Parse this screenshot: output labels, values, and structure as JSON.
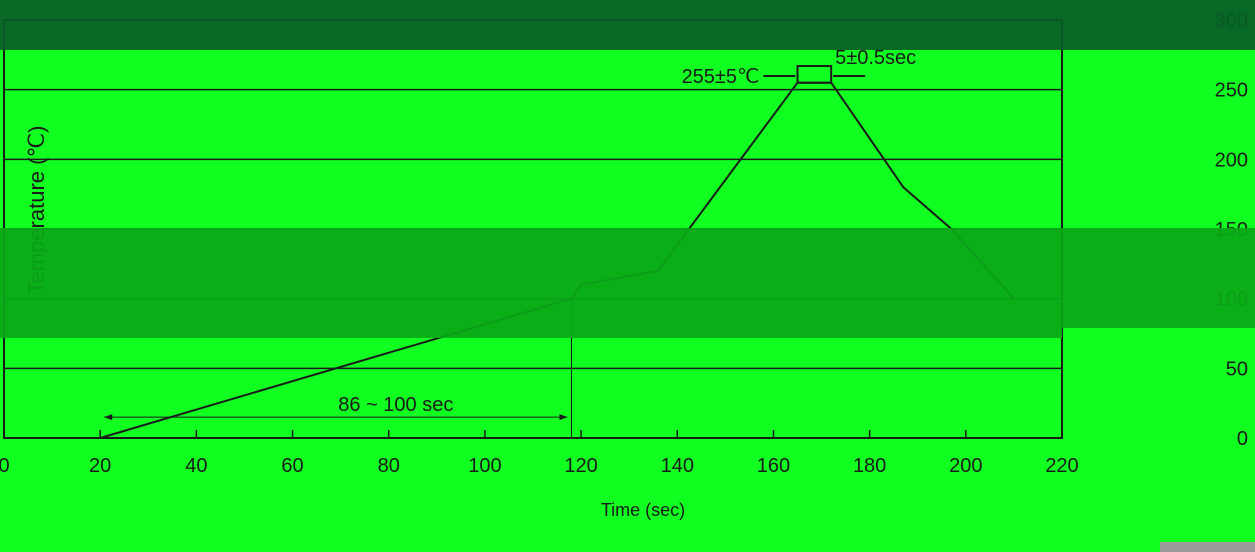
{
  "chart_data": {
    "type": "line",
    "xlabel": "Time (sec)",
    "ylabel": "Temperature (℃)",
    "xlim": [
      0,
      220
    ],
    "ylim": [
      0,
      300
    ],
    "x_ticks": [
      "0",
      "20",
      "40",
      "60",
      "80",
      "100",
      "120",
      "140",
      "160",
      "180",
      "200",
      "220"
    ],
    "y_ticks": [
      "0",
      "50",
      "100",
      "150",
      "200",
      "250",
      "300"
    ],
    "grid": "horizontal",
    "series": [
      {
        "x": [
          0,
          20,
          118,
          120,
          136,
          165,
          168,
          172,
          187,
          197,
          210
        ],
        "y": [
          0,
          0,
          100,
          110,
          120,
          255,
          255,
          255,
          180,
          150,
          100
        ]
      }
    ],
    "annotations": {
      "peak_temp": "255±5℃",
      "peak_time": "5±0.5sec",
      "preheat_time": "86 ~ 100 sec"
    }
  },
  "colors": {
    "background": "#10ff20",
    "line": "#1a1a1a",
    "dark_band": "#065c26",
    "mid_band": "#0aa818"
  }
}
